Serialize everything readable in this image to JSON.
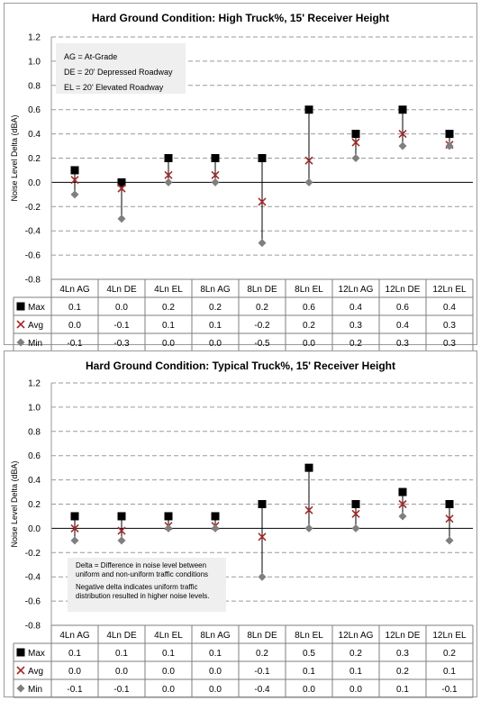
{
  "chart_data": [
    {
      "type": "scatter",
      "title": "Hard Ground Condition: High Truck%, 15' Receiver Height",
      "ylabel": "Noise Level Delta (dBA)",
      "ylim": [
        -0.8,
        1.2
      ],
      "yticks": [
        "1.2",
        "1.0",
        "0.8",
        "0.6",
        "0.4",
        "0.2",
        "0.0",
        "-0.2",
        "-0.4",
        "-0.6",
        "-0.8"
      ],
      "categories": [
        "4Ln AG",
        "4Ln DE",
        "4Ln EL",
        "8Ln AG",
        "8Ln DE",
        "8Ln EL",
        "12Ln AG",
        "12Ln DE",
        "12Ln EL"
      ],
      "series": [
        {
          "name": "Max",
          "marker": "square",
          "color": "#000000",
          "values": [
            0.1,
            0.0,
            0.2,
            0.2,
            0.2,
            0.6,
            0.4,
            0.6,
            0.4
          ],
          "labels": [
            "0.1",
            "0.0",
            "0.2",
            "0.2",
            "0.2",
            "0.6",
            "0.4",
            "0.6",
            "0.4"
          ]
        },
        {
          "name": "Avg",
          "marker": "x",
          "color": "#a52a2a",
          "values": [
            0.02,
            -0.05,
            0.06,
            0.06,
            -0.16,
            0.18,
            0.33,
            0.4,
            0.31
          ],
          "labels": [
            "0.0",
            "-0.1",
            "0.1",
            "0.1",
            "-0.2",
            "0.2",
            "0.3",
            "0.4",
            "0.3"
          ]
        },
        {
          "name": "Min",
          "marker": "diamond",
          "color": "#7f7f7f",
          "values": [
            -0.1,
            -0.3,
            0.0,
            0.0,
            -0.5,
            0.0,
            0.2,
            0.3,
            0.3
          ],
          "labels": [
            "-0.1",
            "-0.3",
            "0.0",
            "0.0",
            "-0.5",
            "0.0",
            "0.2",
            "0.3",
            "0.3"
          ]
        }
      ],
      "annotation": [
        "AG = At-Grade",
        "DE = 20' Depressed Roadway",
        "EL = 20' Elevated Roadway"
      ],
      "grid": true
    },
    {
      "type": "scatter",
      "title": "Hard Ground Condition: Typical Truck%, 15' Receiver Height",
      "ylabel": "Noise Level Delta (dBA)",
      "ylim": [
        -0.8,
        1.2
      ],
      "yticks": [
        "1.2",
        "1.0",
        "0.8",
        "0.6",
        "0.4",
        "0.2",
        "0.0",
        "-0.2",
        "-0.4",
        "-0.6",
        "-0.8"
      ],
      "categories": [
        "4Ln AG",
        "4Ln DE",
        "4Ln EL",
        "8Ln AG",
        "8Ln DE",
        "8Ln EL",
        "12Ln AG",
        "12Ln DE",
        "12Ln EL"
      ],
      "series": [
        {
          "name": "Max",
          "marker": "square",
          "color": "#000000",
          "values": [
            0.1,
            0.1,
            0.1,
            0.1,
            0.2,
            0.5,
            0.2,
            0.3,
            0.2
          ],
          "labels": [
            "0.1",
            "0.1",
            "0.1",
            "0.1",
            "0.2",
            "0.5",
            "0.2",
            "0.3",
            "0.2"
          ]
        },
        {
          "name": "Avg",
          "marker": "x",
          "color": "#a52a2a",
          "values": [
            0.0,
            -0.02,
            0.02,
            0.02,
            -0.07,
            0.15,
            0.12,
            0.2,
            0.08
          ],
          "labels": [
            "0.0",
            "0.0",
            "0.0",
            "0.0",
            "-0.1",
            "0.1",
            "0.1",
            "0.2",
            "0.1"
          ]
        },
        {
          "name": "Min",
          "marker": "diamond",
          "color": "#7f7f7f",
          "values": [
            -0.1,
            -0.1,
            0.0,
            0.0,
            -0.4,
            0.0,
            0.0,
            0.1,
            -0.1
          ],
          "labels": [
            "-0.1",
            "-0.1",
            "0.0",
            "0.0",
            "-0.4",
            "0.0",
            "0.0",
            "0.1",
            "-0.1"
          ]
        }
      ],
      "annotation": [
        "Delta = Difference in noise level between",
        "uniform and non-uniform traffic conditions",
        "Negative delta indicates uniform traffic",
        "distribution resulted in higher noise levels."
      ],
      "grid": true
    }
  ]
}
